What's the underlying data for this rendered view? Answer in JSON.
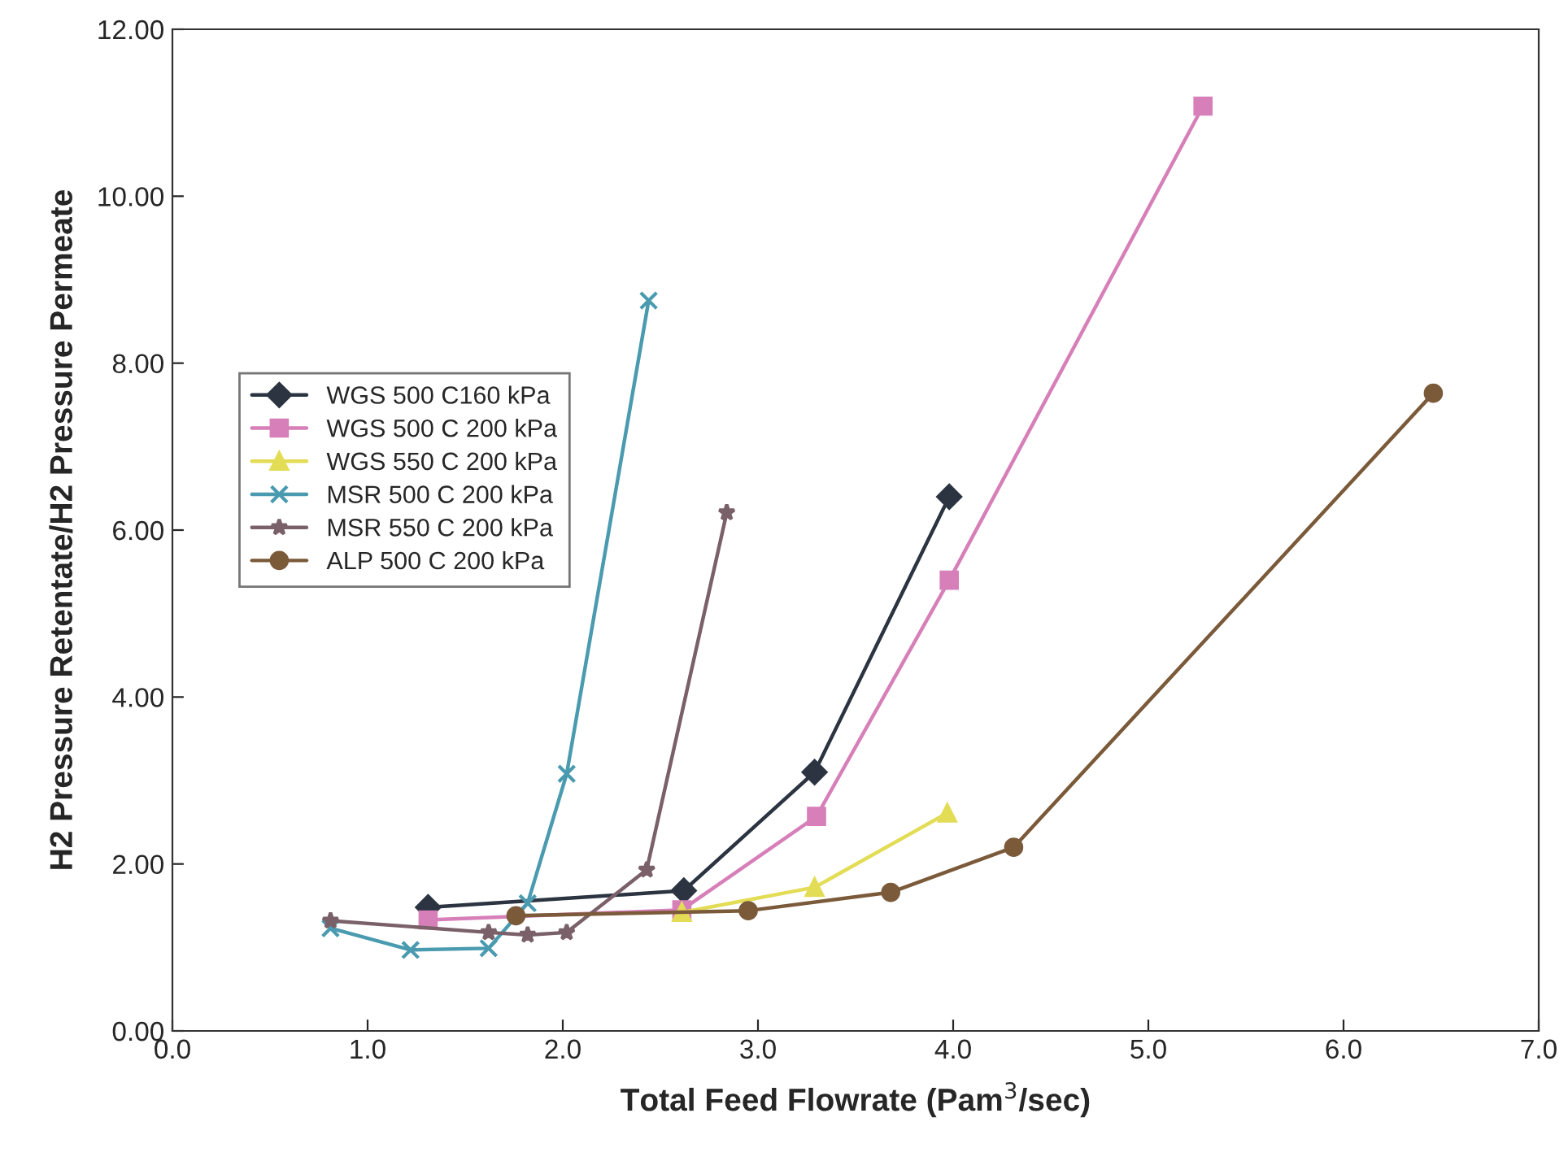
{
  "chart_data": {
    "type": "line",
    "xlabel": "Total Feed Flowrate (Pam$^{3}$/sec)",
    "ylabel": "H2 Pressure Retentate/H2 Pressure Permeate",
    "xlim": [
      0,
      7
    ],
    "ylim": [
      0,
      12
    ],
    "xticks": [
      {
        "value": 0,
        "label": "0.0"
      },
      {
        "value": 1,
        "label": "1.0"
      },
      {
        "value": 2,
        "label": "2.0"
      },
      {
        "value": 3,
        "label": "3.0"
      },
      {
        "value": 4,
        "label": "4.0"
      },
      {
        "value": 5,
        "label": "5.0"
      },
      {
        "value": 6,
        "label": "6.0"
      },
      {
        "value": 7,
        "label": "7.0"
      }
    ],
    "yticks": [
      {
        "value": 0,
        "label": "0.00"
      },
      {
        "value": 2,
        "label": "2.00"
      },
      {
        "value": 4,
        "label": "4.00"
      },
      {
        "value": 6,
        "label": "6.00"
      },
      {
        "value": 8,
        "label": "8.00"
      },
      {
        "value": 10,
        "label": "10.00"
      },
      {
        "value": 12,
        "label": "12.00"
      }
    ],
    "grid": false,
    "legend": "left",
    "series": [
      {
        "name": "WGS 500 C160 kPa",
        "color": "#2b3440",
        "marker": "diamond",
        "x": [
          1.31,
          2.62,
          3.29,
          3.98
        ],
        "values": [
          1.48,
          1.68,
          3.1,
          6.4
        ]
      },
      {
        "name": "WGS 500 C 200 kPa",
        "color": "#d67fb8",
        "marker": "square",
        "x": [
          1.31,
          2.61,
          3.3,
          3.98,
          5.28
        ],
        "values": [
          1.33,
          1.45,
          2.57,
          5.4,
          11.08
        ]
      },
      {
        "name": "WGS 550 C 200 kPa",
        "color": "#e3dc55",
        "marker": "triangle",
        "x": [
          2.61,
          3.29,
          3.97
        ],
        "values": [
          1.42,
          1.72,
          2.61
        ]
      },
      {
        "name": "MSR 500 C 200 kPa",
        "color": "#4a9ab0",
        "marker": "cross",
        "x": [
          0.81,
          1.22,
          1.62,
          1.82,
          2.02,
          2.44
        ],
        "values": [
          1.23,
          0.97,
          0.99,
          1.53,
          3.08,
          8.75
        ]
      },
      {
        "name": "MSR 550 C 200 kPa",
        "color": "#7a6068",
        "marker": "star",
        "x": [
          0.81,
          1.62,
          1.82,
          2.02,
          2.43,
          2.84
        ],
        "values": [
          1.32,
          1.18,
          1.15,
          1.18,
          1.93,
          6.21
        ]
      },
      {
        "name": "ALP 500 C 200 kPa",
        "color": "#7b5a3a",
        "marker": "circle",
        "x": [
          1.76,
          2.95,
          3.68,
          4.31,
          6.46
        ],
        "values": [
          1.38,
          1.44,
          1.66,
          2.2,
          7.64
        ]
      }
    ]
  }
}
